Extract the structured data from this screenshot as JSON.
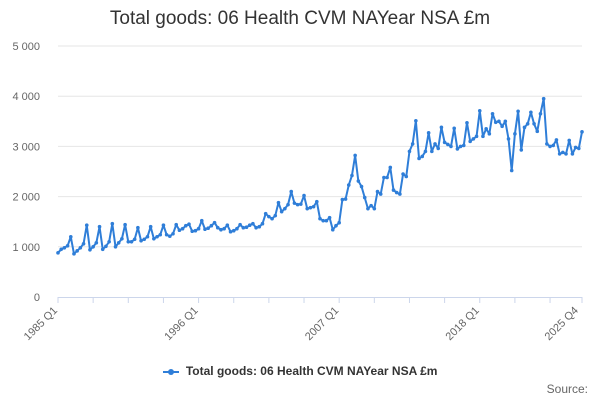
{
  "page": {
    "title": "Total goods: 06 Health CVM NAYear NSA £m",
    "source_label": "Source:"
  },
  "legend": {
    "label": "Total goods: 06 Health CVM NAYear NSA £m",
    "color": "#2f7ed8"
  },
  "chart_data": {
    "type": "line",
    "title": "Total goods: 06 Health CVM NAYear NSA £m",
    "xlabel": "",
    "ylabel": "",
    "ylim": [
      0,
      5000
    ],
    "y_ticks": [
      0,
      1000,
      2000,
      3000,
      4000,
      5000
    ],
    "y_tick_labels": [
      "0",
      "1 000",
      "2 000",
      "3 000",
      "4 000",
      "5 000"
    ],
    "x_tick_labels": [
      "1985 Q1",
      "1996 Q1",
      "2007 Q1",
      "2018 Q1",
      "2025 Q4"
    ],
    "x_tick_positions": [
      0,
      44,
      88,
      132,
      163
    ],
    "grid": true,
    "series": [
      {
        "name": "Total goods: 06 Health CVM NAYear NSA £m",
        "color": "#2f7ed8",
        "values": [
          880,
          950,
          980,
          1020,
          1200,
          860,
          920,
          980,
          1060,
          1430,
          940,
          1000,
          1080,
          1400,
          950,
          1010,
          1100,
          1460,
          1000,
          1080,
          1160,
          1440,
          1100,
          1100,
          1150,
          1380,
          1120,
          1150,
          1200,
          1400,
          1160,
          1200,
          1240,
          1430,
          1240,
          1210,
          1260,
          1440,
          1330,
          1360,
          1420,
          1450,
          1310,
          1320,
          1360,
          1520,
          1350,
          1370,
          1420,
          1480,
          1380,
          1340,
          1360,
          1430,
          1300,
          1320,
          1360,
          1440,
          1380,
          1390,
          1430,
          1460,
          1380,
          1400,
          1460,
          1660,
          1600,
          1560,
          1620,
          1880,
          1700,
          1760,
          1840,
          2100,
          1870,
          1840,
          1850,
          2020,
          1760,
          1780,
          1800,
          1900,
          1560,
          1520,
          1520,
          1580,
          1340,
          1420,
          1480,
          1940,
          1950,
          2230,
          2420,
          2820,
          2310,
          2200,
          1980,
          1760,
          1820,
          1760,
          2100,
          2050,
          2380,
          2380,
          2580,
          2130,
          2080,
          2050,
          2450,
          2400,
          2900,
          3050,
          3510,
          2760,
          2800,
          2900,
          3270,
          2900,
          3050,
          2960,
          3380,
          3080,
          3040,
          3000,
          3360,
          2950,
          3000,
          3020,
          3470,
          3100,
          3150,
          3200,
          3710,
          3200,
          3350,
          3250,
          3650,
          3480,
          3500,
          3400,
          3500,
          3150,
          2520,
          3250,
          3700,
          2930,
          3380,
          3450,
          3680,
          3450,
          3300,
          3650,
          3950,
          3050,
          3000,
          3020,
          3130,
          2850,
          2880,
          2850,
          3120,
          2850,
          2980,
          2960,
          3290
        ]
      }
    ]
  }
}
